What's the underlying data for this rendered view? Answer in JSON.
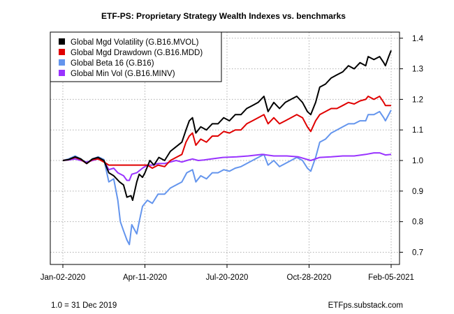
{
  "footer": {
    "left": "1.0 = 31 Dec 2019",
    "right": "ETFps.substack.com"
  },
  "chart_data": {
    "type": "line",
    "title": "ETF-PS: Proprietary Strategy Wealth Indexes vs. benchmarks",
    "xlabel": "",
    "ylabel": "",
    "x_ticks": [
      "Jan-02-2020",
      "Apr-11-2020",
      "Jul-20-2020",
      "Oct-28-2020",
      "Feb-05-2021"
    ],
    "x_range": [
      "2020-01-02",
      "2021-02-05"
    ],
    "y_ticks": [
      0.7,
      0.8,
      0.9,
      1.0,
      1.1,
      1.2,
      1.3,
      1.4
    ],
    "ylim": [
      0.66,
      1.42
    ],
    "y_axis_position": "right",
    "grid": true,
    "legend_position": "top-left",
    "series": [
      {
        "name": "Global Mgd Volatility (G.B16.MVOL)",
        "color": "#000000",
        "points": [
          [
            "2020-01-02",
            1.0
          ],
          [
            "2020-01-09",
            1.003
          ],
          [
            "2020-01-17",
            1.012
          ],
          [
            "2020-01-24",
            1.005
          ],
          [
            "2020-01-31",
            0.99
          ],
          [
            "2020-02-07",
            1.005
          ],
          [
            "2020-02-14",
            1.01
          ],
          [
            "2020-02-21",
            1.0
          ],
          [
            "2020-02-27",
            0.96
          ],
          [
            "2020-03-04",
            0.95
          ],
          [
            "2020-03-11",
            0.93
          ],
          [
            "2020-03-16",
            0.92
          ],
          [
            "2020-03-20",
            0.88
          ],
          [
            "2020-03-25",
            0.885
          ],
          [
            "2020-03-27",
            0.87
          ],
          [
            "2020-04-01",
            0.93
          ],
          [
            "2020-04-04",
            0.955
          ],
          [
            "2020-04-08",
            0.945
          ],
          [
            "2020-04-11",
            0.96
          ],
          [
            "2020-04-17",
            1.0
          ],
          [
            "2020-04-22",
            0.985
          ],
          [
            "2020-04-28",
            1.01
          ],
          [
            "2020-05-05",
            1.0
          ],
          [
            "2020-05-12",
            1.03
          ],
          [
            "2020-05-19",
            1.045
          ],
          [
            "2020-05-26",
            1.06
          ],
          [
            "2020-05-31",
            1.1
          ],
          [
            "2020-06-04",
            1.13
          ],
          [
            "2020-06-08",
            1.14
          ],
          [
            "2020-06-12",
            1.09
          ],
          [
            "2020-06-18",
            1.11
          ],
          [
            "2020-06-25",
            1.1
          ],
          [
            "2020-07-02",
            1.12
          ],
          [
            "2020-07-09",
            1.12
          ],
          [
            "2020-07-16",
            1.14
          ],
          [
            "2020-07-23",
            1.13
          ],
          [
            "2020-07-30",
            1.15
          ],
          [
            "2020-08-06",
            1.15
          ],
          [
            "2020-08-13",
            1.17
          ],
          [
            "2020-08-20",
            1.18
          ],
          [
            "2020-08-27",
            1.19
          ],
          [
            "2020-09-03",
            1.21
          ],
          [
            "2020-09-08",
            1.16
          ],
          [
            "2020-09-15",
            1.19
          ],
          [
            "2020-09-22",
            1.17
          ],
          [
            "2020-09-29",
            1.19
          ],
          [
            "2020-10-06",
            1.2
          ],
          [
            "2020-10-13",
            1.21
          ],
          [
            "2020-10-20",
            1.19
          ],
          [
            "2020-10-26",
            1.16
          ],
          [
            "2020-10-30",
            1.15
          ],
          [
            "2020-11-05",
            1.19
          ],
          [
            "2020-11-10",
            1.24
          ],
          [
            "2020-11-17",
            1.25
          ],
          [
            "2020-11-24",
            1.27
          ],
          [
            "2020-12-01",
            1.28
          ],
          [
            "2020-12-08",
            1.29
          ],
          [
            "2020-12-15",
            1.31
          ],
          [
            "2020-12-22",
            1.3
          ],
          [
            "2020-12-29",
            1.32
          ],
          [
            "2021-01-05",
            1.31
          ],
          [
            "2021-01-08",
            1.34
          ],
          [
            "2021-01-15",
            1.33
          ],
          [
            "2021-01-22",
            1.34
          ],
          [
            "2021-01-27",
            1.32
          ],
          [
            "2021-01-29",
            1.31
          ],
          [
            "2021-02-02",
            1.34
          ],
          [
            "2021-02-05",
            1.36
          ]
        ]
      },
      {
        "name": "Global Mgd Drawdown (G.B16.MDD)",
        "color": "#e00000",
        "points": [
          [
            "2020-01-02",
            1.0
          ],
          [
            "2020-01-09",
            1.003
          ],
          [
            "2020-01-17",
            1.01
          ],
          [
            "2020-01-24",
            1.003
          ],
          [
            "2020-01-31",
            0.99
          ],
          [
            "2020-02-07",
            1.003
          ],
          [
            "2020-02-14",
            1.005
          ],
          [
            "2020-02-21",
            0.995
          ],
          [
            "2020-02-27",
            0.985
          ],
          [
            "2020-03-02",
            0.985
          ],
          [
            "2020-03-16",
            0.985
          ],
          [
            "2020-04-01",
            0.985
          ],
          [
            "2020-04-14",
            0.985
          ],
          [
            "2020-04-20",
            0.975
          ],
          [
            "2020-04-27",
            0.985
          ],
          [
            "2020-05-05",
            0.98
          ],
          [
            "2020-05-12",
            1.0
          ],
          [
            "2020-05-19",
            1.01
          ],
          [
            "2020-05-26",
            1.02
          ],
          [
            "2020-05-31",
            1.06
          ],
          [
            "2020-06-04",
            1.08
          ],
          [
            "2020-06-08",
            1.09
          ],
          [
            "2020-06-12",
            1.05
          ],
          [
            "2020-06-18",
            1.07
          ],
          [
            "2020-06-25",
            1.06
          ],
          [
            "2020-07-02",
            1.08
          ],
          [
            "2020-07-09",
            1.08
          ],
          [
            "2020-07-16",
            1.095
          ],
          [
            "2020-07-23",
            1.09
          ],
          [
            "2020-07-30",
            1.1
          ],
          [
            "2020-08-06",
            1.1
          ],
          [
            "2020-08-13",
            1.12
          ],
          [
            "2020-08-20",
            1.13
          ],
          [
            "2020-08-27",
            1.14
          ],
          [
            "2020-09-03",
            1.15
          ],
          [
            "2020-09-08",
            1.12
          ],
          [
            "2020-09-15",
            1.14
          ],
          [
            "2020-09-22",
            1.12
          ],
          [
            "2020-09-29",
            1.13
          ],
          [
            "2020-10-06",
            1.14
          ],
          [
            "2020-10-13",
            1.15
          ],
          [
            "2020-10-20",
            1.14
          ],
          [
            "2020-10-26",
            1.11
          ],
          [
            "2020-10-30",
            1.095
          ],
          [
            "2020-11-05",
            1.13
          ],
          [
            "2020-11-10",
            1.15
          ],
          [
            "2020-11-17",
            1.16
          ],
          [
            "2020-11-24",
            1.17
          ],
          [
            "2020-12-01",
            1.17
          ],
          [
            "2020-12-08",
            1.18
          ],
          [
            "2020-12-15",
            1.19
          ],
          [
            "2020-12-22",
            1.185
          ],
          [
            "2020-12-29",
            1.195
          ],
          [
            "2021-01-05",
            1.2
          ],
          [
            "2021-01-08",
            1.21
          ],
          [
            "2021-01-15",
            1.2
          ],
          [
            "2021-01-22",
            1.21
          ],
          [
            "2021-01-27",
            1.19
          ],
          [
            "2021-01-29",
            1.18
          ],
          [
            "2021-02-05",
            1.18
          ]
        ]
      },
      {
        "name": "Global Beta 16 (G.B16)",
        "color": "#6495ed",
        "points": [
          [
            "2020-01-02",
            1.0
          ],
          [
            "2020-01-09",
            1.005
          ],
          [
            "2020-01-17",
            1.015
          ],
          [
            "2020-01-24",
            1.005
          ],
          [
            "2020-01-31",
            0.99
          ],
          [
            "2020-02-07",
            1.005
          ],
          [
            "2020-02-14",
            1.012
          ],
          [
            "2020-02-21",
            1.003
          ],
          [
            "2020-02-27",
            0.93
          ],
          [
            "2020-03-04",
            0.94
          ],
          [
            "2020-03-09",
            0.87
          ],
          [
            "2020-03-12",
            0.8
          ],
          [
            "2020-03-16",
            0.77
          ],
          [
            "2020-03-20",
            0.74
          ],
          [
            "2020-03-23",
            0.725
          ],
          [
            "2020-03-26",
            0.79
          ],
          [
            "2020-04-01",
            0.76
          ],
          [
            "2020-04-04",
            0.8
          ],
          [
            "2020-04-08",
            0.85
          ],
          [
            "2020-04-14",
            0.87
          ],
          [
            "2020-04-20",
            0.86
          ],
          [
            "2020-04-27",
            0.89
          ],
          [
            "2020-05-05",
            0.89
          ],
          [
            "2020-05-12",
            0.91
          ],
          [
            "2020-05-19",
            0.92
          ],
          [
            "2020-05-26",
            0.93
          ],
          [
            "2020-06-01",
            0.96
          ],
          [
            "2020-06-08",
            0.97
          ],
          [
            "2020-06-12",
            0.93
          ],
          [
            "2020-06-18",
            0.95
          ],
          [
            "2020-06-25",
            0.94
          ],
          [
            "2020-07-02",
            0.96
          ],
          [
            "2020-07-09",
            0.96
          ],
          [
            "2020-07-16",
            0.97
          ],
          [
            "2020-07-23",
            0.965
          ],
          [
            "2020-07-30",
            0.975
          ],
          [
            "2020-08-06",
            0.98
          ],
          [
            "2020-08-13",
            0.99
          ],
          [
            "2020-08-20",
            1.0
          ],
          [
            "2020-08-27",
            1.01
          ],
          [
            "2020-09-03",
            1.02
          ],
          [
            "2020-09-08",
            0.985
          ],
          [
            "2020-09-15",
            1.0
          ],
          [
            "2020-09-22",
            0.98
          ],
          [
            "2020-09-29",
            0.99
          ],
          [
            "2020-10-06",
            1.0
          ],
          [
            "2020-10-13",
            1.01
          ],
          [
            "2020-10-20",
            1.0
          ],
          [
            "2020-10-26",
            0.975
          ],
          [
            "2020-10-30",
            0.965
          ],
          [
            "2020-11-05",
            1.01
          ],
          [
            "2020-11-10",
            1.06
          ],
          [
            "2020-11-17",
            1.07
          ],
          [
            "2020-11-24",
            1.09
          ],
          [
            "2020-12-01",
            1.1
          ],
          [
            "2020-12-08",
            1.11
          ],
          [
            "2020-12-15",
            1.12
          ],
          [
            "2020-12-22",
            1.12
          ],
          [
            "2020-12-29",
            1.13
          ],
          [
            "2021-01-05",
            1.13
          ],
          [
            "2021-01-08",
            1.15
          ],
          [
            "2021-01-15",
            1.15
          ],
          [
            "2021-01-22",
            1.16
          ],
          [
            "2021-01-27",
            1.14
          ],
          [
            "2021-01-29",
            1.13
          ],
          [
            "2021-02-02",
            1.15
          ],
          [
            "2021-02-05",
            1.165
          ]
        ]
      },
      {
        "name": "Global Min Vol (G.B16.MINV)",
        "color": "#9933ff",
        "points": [
          [
            "2020-01-02",
            1.0
          ],
          [
            "2020-01-09",
            1.002
          ],
          [
            "2020-01-17",
            1.005
          ],
          [
            "2020-01-24",
            1.0
          ],
          [
            "2020-01-31",
            0.995
          ],
          [
            "2020-02-07",
            1.0
          ],
          [
            "2020-02-14",
            1.005
          ],
          [
            "2020-02-21",
            1.0
          ],
          [
            "2020-02-27",
            0.97
          ],
          [
            "2020-03-04",
            0.975
          ],
          [
            "2020-03-09",
            0.96
          ],
          [
            "2020-03-16",
            0.95
          ],
          [
            "2020-03-20",
            0.935
          ],
          [
            "2020-03-23",
            0.935
          ],
          [
            "2020-03-26",
            0.955
          ],
          [
            "2020-04-01",
            0.96
          ],
          [
            "2020-04-08",
            0.975
          ],
          [
            "2020-04-14",
            0.985
          ],
          [
            "2020-04-20",
            0.985
          ],
          [
            "2020-04-27",
            0.99
          ],
          [
            "2020-05-05",
            0.99
          ],
          [
            "2020-05-12",
            0.995
          ],
          [
            "2020-05-19",
            1.0
          ],
          [
            "2020-05-26",
            0.995
          ],
          [
            "2020-06-01",
            1.0
          ],
          [
            "2020-06-08",
            1.005
          ],
          [
            "2020-06-15",
            1.0
          ],
          [
            "2020-06-22",
            1.002
          ],
          [
            "2020-07-01",
            1.005
          ],
          [
            "2020-07-15",
            1.01
          ],
          [
            "2020-08-01",
            1.012
          ],
          [
            "2020-08-15",
            1.015
          ],
          [
            "2020-09-01",
            1.02
          ],
          [
            "2020-09-15",
            1.015
          ],
          [
            "2020-10-01",
            1.015
          ],
          [
            "2020-10-15",
            1.012
          ],
          [
            "2020-10-30",
            1.0
          ],
          [
            "2020-11-10",
            1.01
          ],
          [
            "2020-11-24",
            1.012
          ],
          [
            "2020-12-08",
            1.015
          ],
          [
            "2020-12-22",
            1.015
          ],
          [
            "2021-01-05",
            1.02
          ],
          [
            "2021-01-15",
            1.025
          ],
          [
            "2021-01-22",
            1.025
          ],
          [
            "2021-01-29",
            1.018
          ],
          [
            "2021-02-05",
            1.02
          ]
        ]
      }
    ]
  }
}
